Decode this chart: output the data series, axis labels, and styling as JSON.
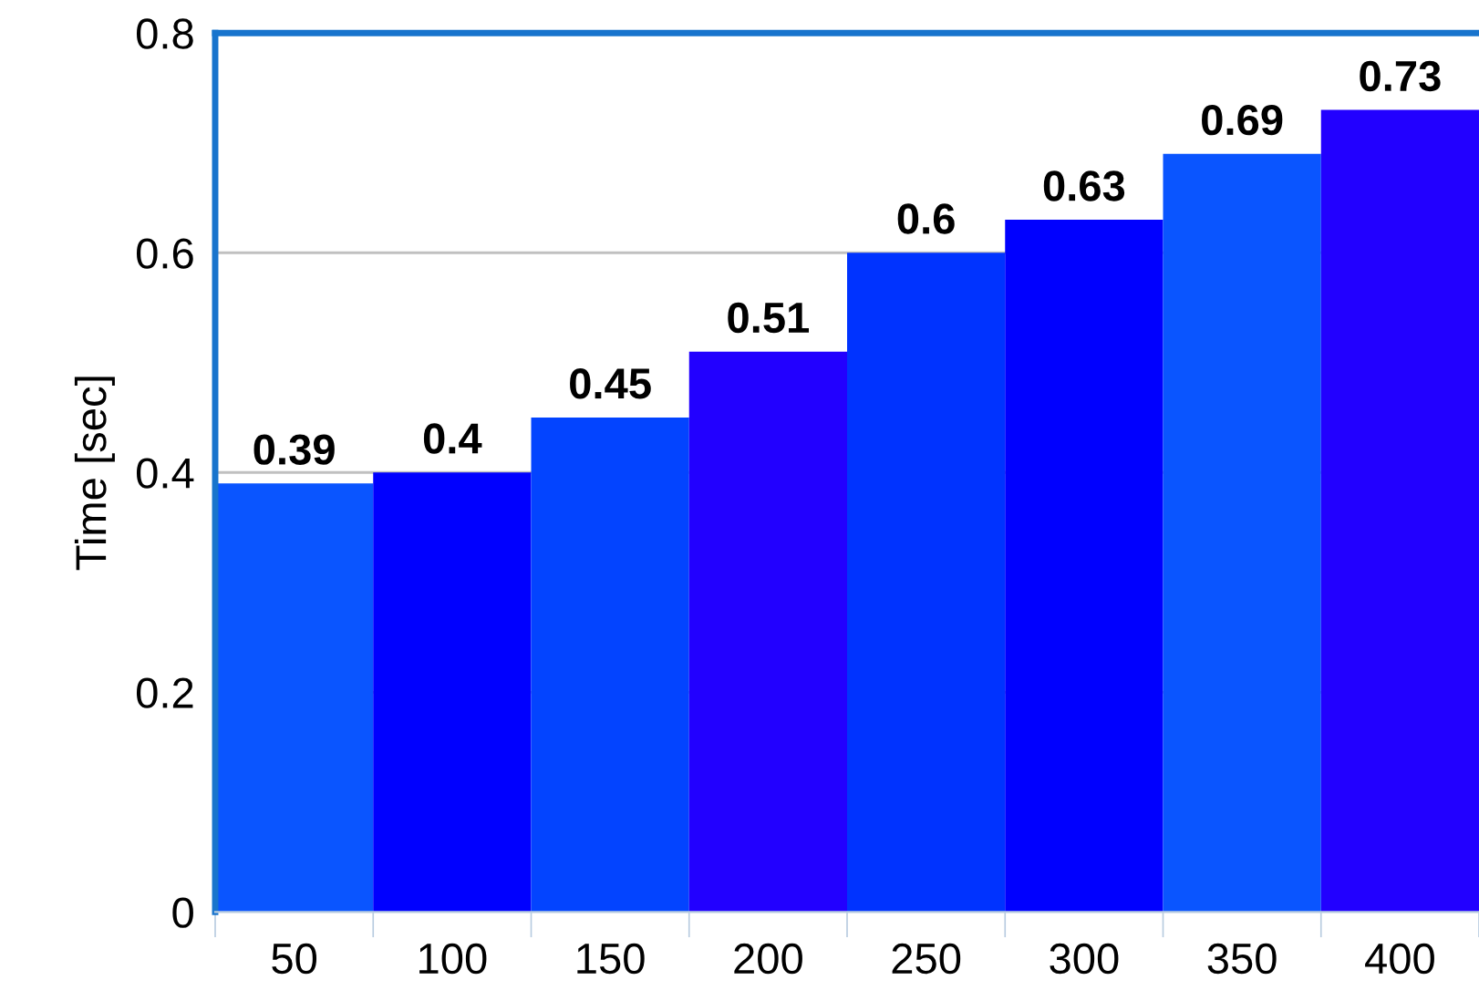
{
  "chart_data": {
    "type": "bar",
    "ylabel": "Time [sec]",
    "categories": [
      "50",
      "100",
      "150",
      "200",
      "250",
      "300",
      "350",
      "400"
    ],
    "values": [
      0.39,
      0.4,
      0.45,
      0.51,
      0.6,
      0.63,
      0.69,
      0.73
    ],
    "colors": [
      "#0a55ff",
      "#0000ff",
      "#0344ff",
      "#2200ff",
      "#0033ff",
      "#0000ff",
      "#0a55ff",
      "#2200ff"
    ],
    "ylim": [
      0,
      0.8
    ],
    "yticks": [
      0,
      0.2,
      0.4,
      0.6,
      0.8
    ],
    "grid": "y",
    "data_labels": true
  }
}
